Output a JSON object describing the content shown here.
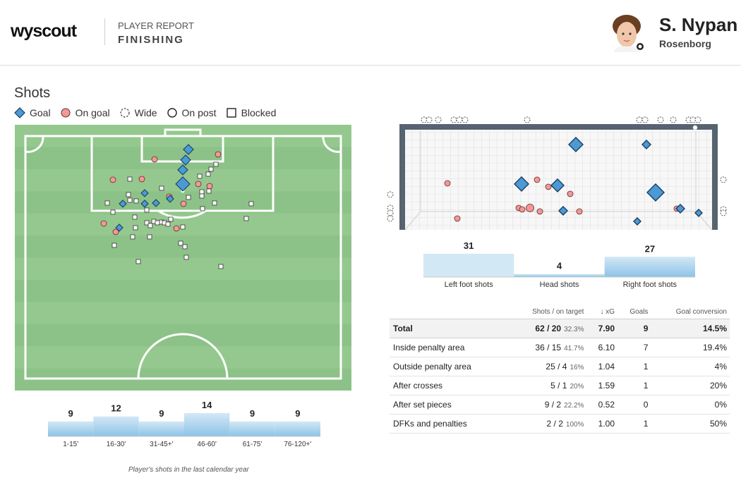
{
  "header": {
    "logo": "wyscout",
    "report_type": "PLAYER REPORT",
    "report_subtype": "FINISHING",
    "player_name": "S. Nypan",
    "team": "Rosenborg"
  },
  "section_title": "Shots",
  "legend": [
    {
      "label": "Goal",
      "icon": "goal-diamond-icon"
    },
    {
      "label": "On goal",
      "icon": "on-goal-circle-icon"
    },
    {
      "label": "Wide",
      "icon": "wide-dashed-circle-icon"
    },
    {
      "label": "On post",
      "icon": "on-post-circle-icon"
    },
    {
      "label": "Blocked",
      "icon": "blocked-square-icon"
    }
  ],
  "colors": {
    "goal": "#4a9ad6",
    "on_goal": "#ef9a98",
    "pitch_light": "#95c88e",
    "pitch_dark": "#8cc287",
    "goal_frame": "#566370",
    "bar_light": "#d3e8f5",
    "bar_dark": "#8cc3e8"
  },
  "chart_data": [
    {
      "type": "bar",
      "title": "",
      "categories": [
        "Left foot shots",
        "Head shots",
        "Right foot shots"
      ],
      "values": [
        31,
        4,
        27
      ]
    },
    {
      "type": "bar",
      "title": "",
      "categories": [
        "1-15'",
        "16-30'",
        "31-45+'",
        "46-60'",
        "61-75'",
        "76-120+'"
      ],
      "values": [
        9,
        12,
        9,
        14,
        9,
        9
      ]
    }
  ],
  "shot_map": {
    "goals": [
      [
        267,
        212
      ],
      [
        263,
        227
      ],
      [
        259,
        241
      ],
      [
        259,
        261
      ],
      [
        205,
        274
      ],
      [
        241,
        282
      ],
      [
        205,
        289
      ],
      [
        221,
        288
      ],
      [
        174,
        289
      ],
      [
        169,
        323
      ]
    ],
    "goals_big": [
      [
        259,
        261
      ]
    ],
    "on_goal": [
      [
        309,
        219
      ],
      [
        219,
        226
      ],
      [
        160,
        255
      ],
      [
        201,
        254
      ],
      [
        281,
        261
      ],
      [
        297,
        264
      ],
      [
        240,
        279
      ],
      [
        260,
        289
      ],
      [
        147,
        317
      ],
      [
        164,
        329
      ],
      [
        250,
        324
      ]
    ],
    "blocked": [
      [
        295,
        247
      ],
      [
        283,
        250
      ],
      [
        296,
        271
      ],
      [
        286,
        272
      ],
      [
        286,
        278
      ],
      [
        267,
        280
      ],
      [
        304,
        288
      ],
      [
        229,
        267
      ],
      [
        306,
        233
      ],
      [
        299,
        240
      ],
      [
        184,
        254
      ],
      [
        182,
        276
      ],
      [
        184,
        284
      ],
      [
        193,
        285
      ],
      [
        152,
        288
      ],
      [
        356,
        289
      ],
      [
        287,
        296
      ],
      [
        208,
        298
      ],
      [
        191,
        308
      ],
      [
        160,
        301
      ],
      [
        349,
        310
      ],
      [
        208,
        316
      ],
      [
        218,
        314
      ],
      [
        223,
        316
      ],
      [
        229,
        315
      ],
      [
        233,
        316
      ],
      [
        242,
        311
      ],
      [
        238,
        318
      ],
      [
        259,
        322
      ],
      [
        256,
        345
      ],
      [
        262,
        350
      ],
      [
        192,
        323
      ],
      [
        212,
        336
      ],
      [
        188,
        336
      ],
      [
        162,
        348
      ],
      [
        213,
        320
      ],
      [
        196,
        371
      ],
      [
        264,
        365
      ],
      [
        313,
        378
      ],
      [
        261,
        262
      ]
    ]
  },
  "goal_map": {
    "goals": [
      [
        816,
        205,
        10
      ],
      [
        916,
        205,
        6
      ],
      [
        739,
        261,
        10
      ],
      [
        790,
        263,
        9
      ],
      [
        929,
        273,
        12
      ],
      [
        798,
        299,
        6
      ],
      [
        964,
        296,
        6
      ],
      [
        903,
        314,
        5
      ],
      [
        990,
        302,
        5
      ]
    ],
    "on_goal": [
      [
        634,
        260
      ],
      [
        761,
        255
      ],
      [
        777,
        265
      ],
      [
        808,
        275
      ],
      [
        735,
        295
      ],
      [
        740,
        297
      ],
      [
        751,
        295
      ],
      [
        765,
        300
      ],
      [
        821,
        300
      ],
      [
        959,
        296
      ],
      [
        648,
        310
      ]
    ],
    "wide": [
      [
        601,
        170
      ],
      [
        608,
        170
      ],
      [
        621,
        170
      ],
      [
        643,
        170
      ],
      [
        651,
        170
      ],
      [
        659,
        170
      ],
      [
        747,
        170
      ],
      [
        906,
        170
      ],
      [
        914,
        170
      ],
      [
        936,
        170
      ],
      [
        954,
        170
      ],
      [
        976,
        170
      ],
      [
        982,
        170
      ],
      [
        989,
        170
      ],
      [
        553,
        276
      ],
      [
        553,
        295
      ],
      [
        553,
        302
      ],
      [
        553,
        310
      ],
      [
        1025,
        255
      ],
      [
        1025,
        297
      ],
      [
        1025,
        302
      ]
    ]
  },
  "table": {
    "headers": [
      "",
      "Shots / on target",
      "↓ xG",
      "Goals",
      "Goal conversion"
    ],
    "rows": [
      {
        "label": "Total",
        "shots": "62 / 20",
        "pct": "32.3%",
        "xg": "7.90",
        "goals": "9",
        "conv": "14.5%"
      },
      {
        "label": "Inside penalty area",
        "shots": "36 / 15",
        "pct": "41.7%",
        "xg": "6.10",
        "goals": "7",
        "conv": "19.4%"
      },
      {
        "label": "Outside penalty area",
        "shots": "25 / 4",
        "pct": "16%",
        "xg": "1.04",
        "goals": "1",
        "conv": "4%"
      },
      {
        "label": "After crosses",
        "shots": "5 / 1",
        "pct": "20%",
        "xg": "1.59",
        "goals": "1",
        "conv": "20%"
      },
      {
        "label": "After set pieces",
        "shots": "9 / 2",
        "pct": "22.2%",
        "xg": "0.52",
        "goals": "0",
        "conv": "0%"
      },
      {
        "label": "DFKs and penalties",
        "shots": "2 / 2",
        "pct": "100%",
        "xg": "1.00",
        "goals": "1",
        "conv": "50%"
      }
    ]
  },
  "footnote": "Player's shots in the last calendar year"
}
